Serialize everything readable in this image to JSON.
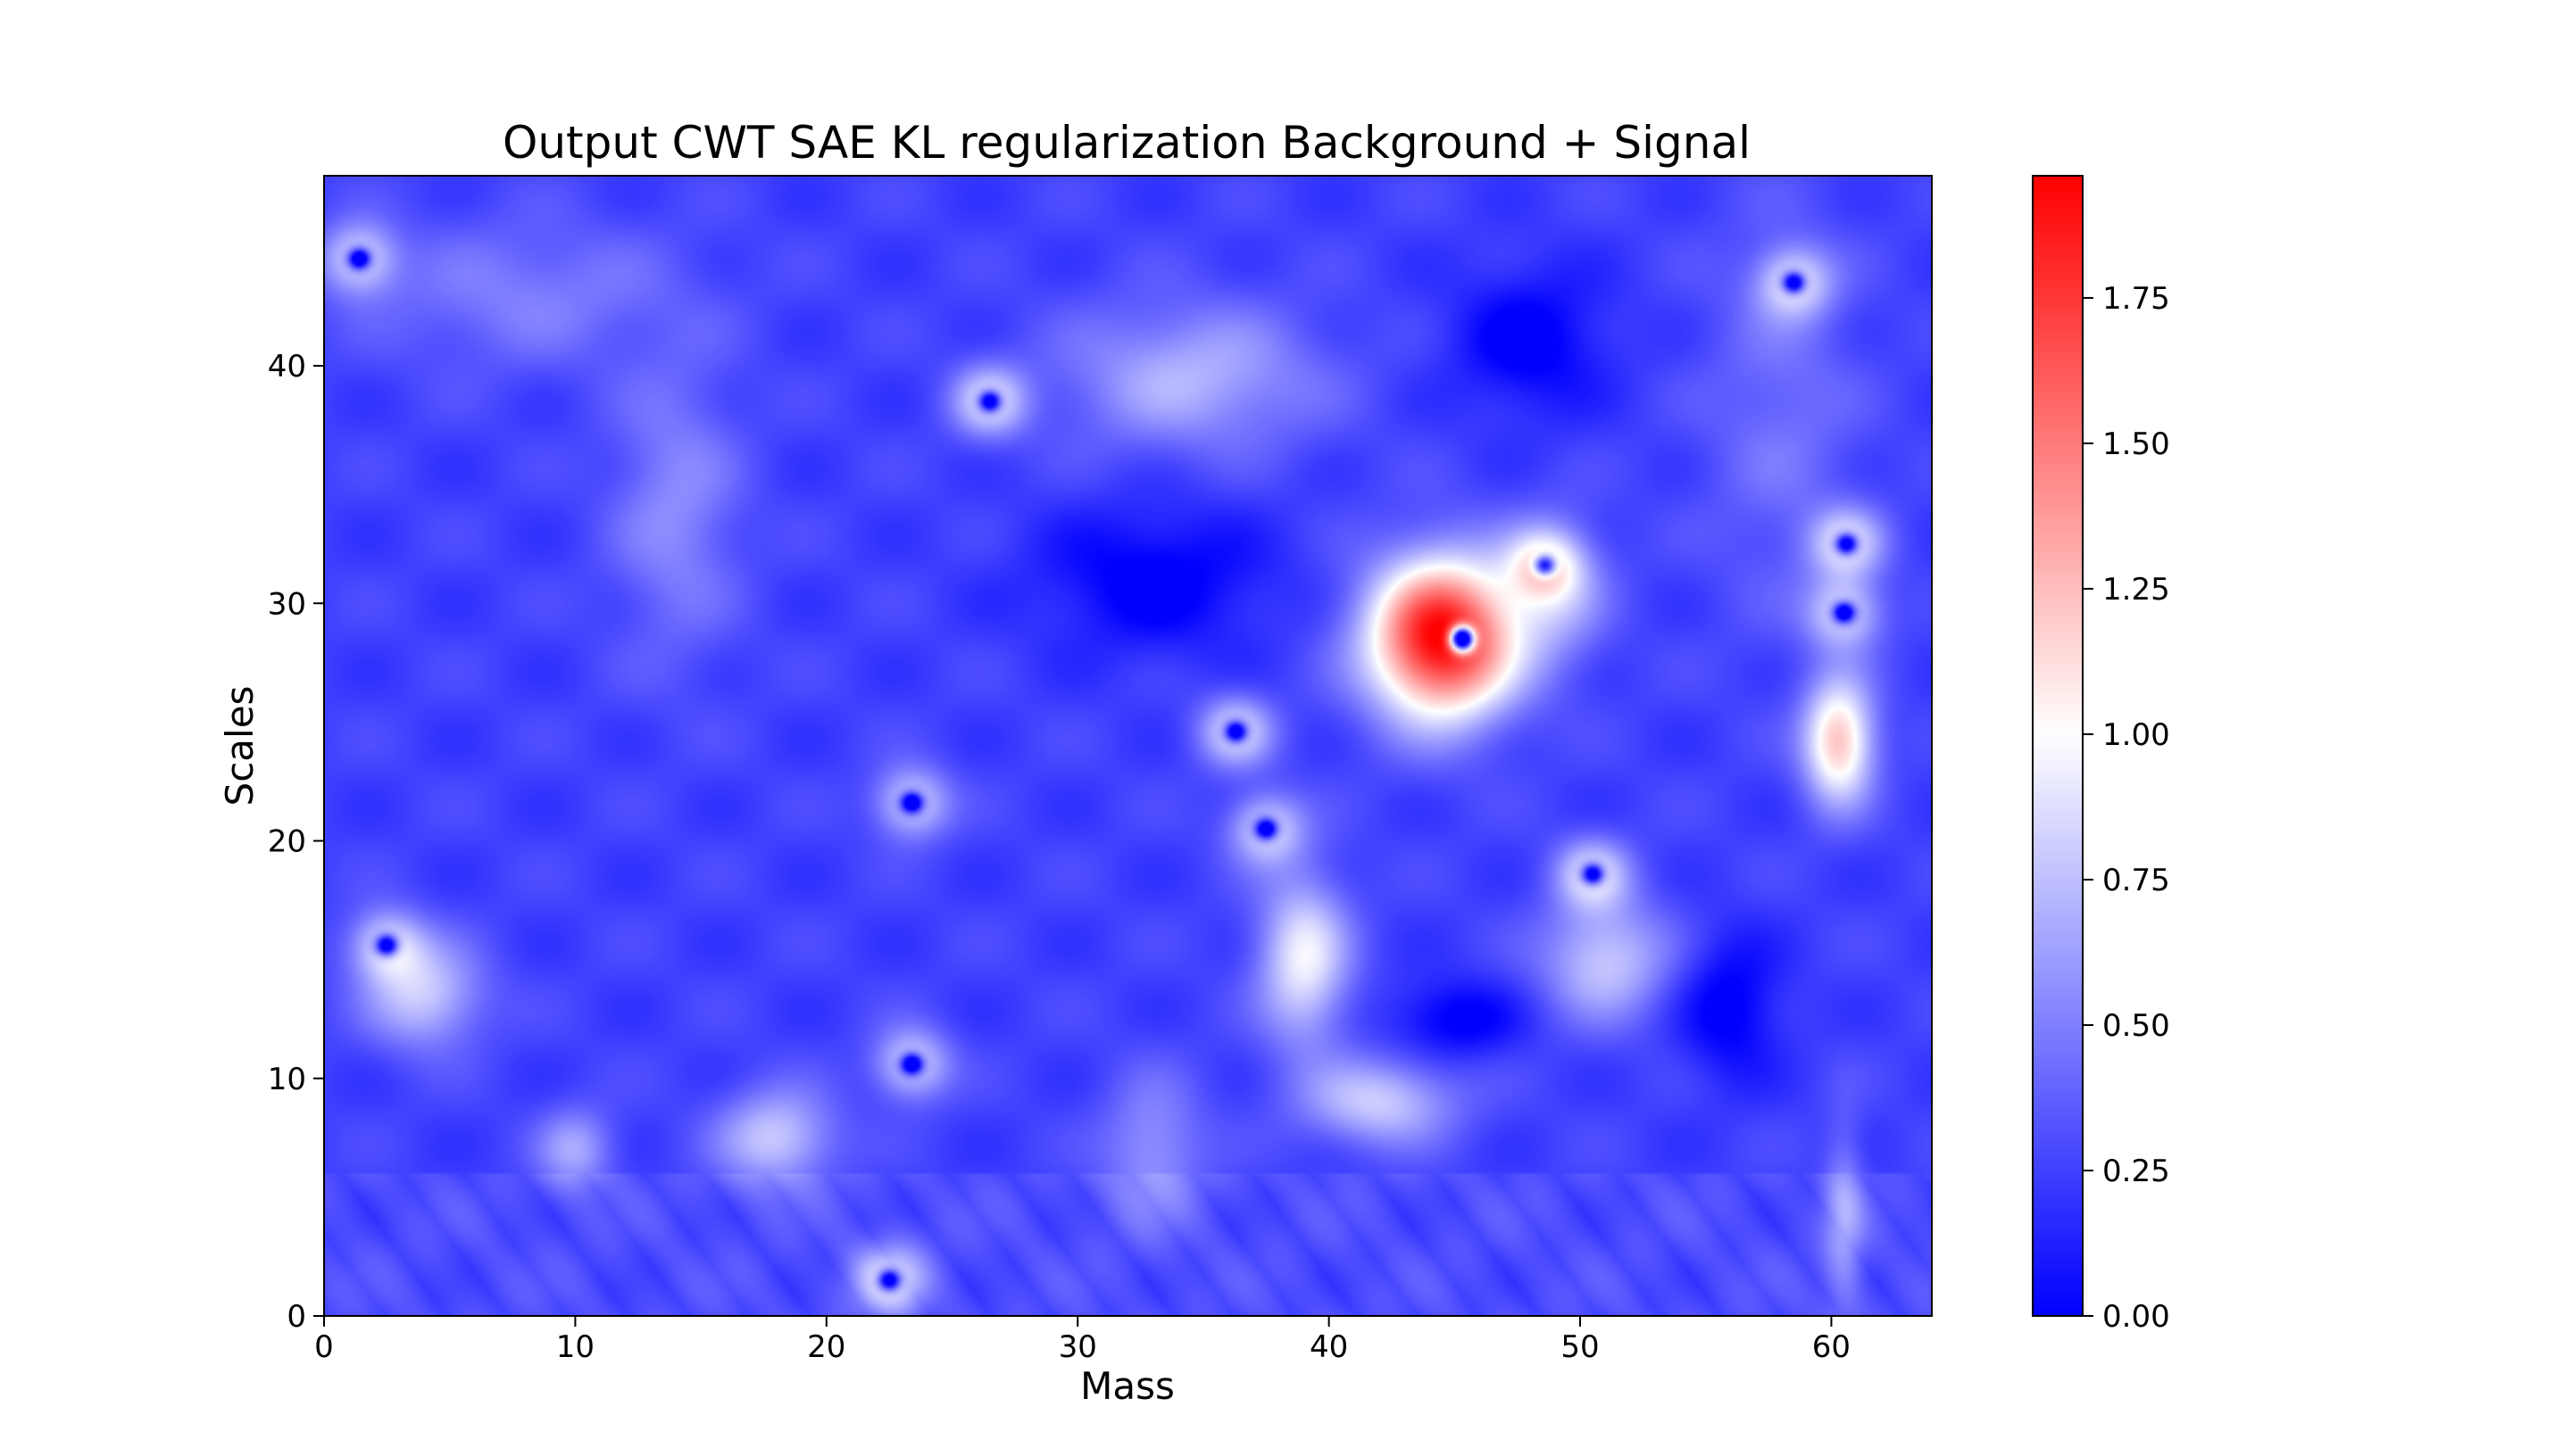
{
  "chart_data": {
    "type": "heatmap",
    "title": "Output CWT SAE KL regularization Background + Signal",
    "xlabel": "Mass",
    "ylabel": "Scales",
    "xlim": [
      0,
      64
    ],
    "ylim": [
      0,
      48
    ],
    "x_ticks": [
      0,
      10,
      20,
      30,
      40,
      50,
      60
    ],
    "y_ticks": [
      0,
      10,
      20,
      30,
      40
    ],
    "colormap": {
      "name": "bwr",
      "low": "#0000ff",
      "mid": "#ffffff",
      "high": "#ff0000"
    },
    "colorbar": {
      "vmin": 0.0,
      "vmax": 1.96,
      "ticks": [
        0.0,
        0.25,
        0.5,
        0.75,
        1.0,
        1.25,
        1.5,
        1.75
      ],
      "tick_labels": [
        "0.00",
        "0.25",
        "0.50",
        "0.75",
        "1.00",
        "1.25",
        "1.50",
        "1.75"
      ]
    },
    "grid": false,
    "background_level": 0.25,
    "features": [
      {
        "kind": "hot",
        "x": 44.5,
        "y": 28.5,
        "sx": 2.9,
        "sy": 3.3,
        "amp": 1.75
      },
      {
        "kind": "cold",
        "x": 45.3,
        "y": 28.5,
        "sx": 0.45,
        "sy": 0.5,
        "amp": -2.5
      },
      {
        "kind": "hot",
        "x": 60.3,
        "y": 24.2,
        "sx": 1.4,
        "sy": 2.6,
        "amp": 1.0
      },
      {
        "kind": "warm",
        "x": 34.5,
        "y": 39.5,
        "sx": 5.0,
        "sy": 3.0,
        "amp": 0.45
      },
      {
        "kind": "warm",
        "x": 14.0,
        "y": 34.0,
        "sx": 2.5,
        "sy": 6.0,
        "amp": 0.3
      },
      {
        "kind": "warm",
        "x": 8.0,
        "y": 43.0,
        "sx": 6.0,
        "sy": 3.0,
        "amp": 0.25
      },
      {
        "kind": "warm",
        "x": 39.0,
        "y": 15.0,
        "sx": 1.8,
        "sy": 3.5,
        "amp": 0.7
      },
      {
        "kind": "warm",
        "x": 42.0,
        "y": 9.0,
        "sx": 3.0,
        "sy": 1.8,
        "amp": 0.55
      },
      {
        "kind": "warm",
        "x": 51.0,
        "y": 15.0,
        "sx": 2.5,
        "sy": 2.5,
        "amp": 0.55
      },
      {
        "kind": "warm",
        "x": 18.0,
        "y": 7.5,
        "sx": 2.3,
        "sy": 2.0,
        "amp": 0.55
      },
      {
        "kind": "warm",
        "x": 10.0,
        "y": 7.0,
        "sx": 1.5,
        "sy": 1.7,
        "amp": 0.4
      },
      {
        "kind": "warm",
        "x": 4.0,
        "y": 13.5,
        "sx": 2.3,
        "sy": 2.2,
        "amp": 0.55
      },
      {
        "kind": "warm",
        "x": 33.0,
        "y": 7.0,
        "sx": 2.0,
        "sy": 3.0,
        "amp": 0.35
      },
      {
        "kind": "warm",
        "x": 60.5,
        "y": 4.0,
        "sx": 0.8,
        "sy": 4.0,
        "amp": 0.35
      },
      {
        "kind": "warm",
        "x": 58.0,
        "y": 38.0,
        "sx": 3.0,
        "sy": 8.0,
        "amp": 0.2
      },
      {
        "kind": "warm",
        "x": 49.0,
        "y": 30.5,
        "sx": 2.0,
        "sy": 3.0,
        "amp": 0.4
      },
      {
        "kind": "cold",
        "x": 45.0,
        "y": 12.5,
        "sx": 2.5,
        "sy": 1.6,
        "amp": -0.3
      },
      {
        "kind": "cold",
        "x": 33.0,
        "y": 31.0,
        "sx": 4.5,
        "sy": 3.0,
        "amp": -0.3
      },
      {
        "kind": "cold",
        "x": 48.0,
        "y": 41.0,
        "sx": 3.0,
        "sy": 3.0,
        "amp": -0.3
      },
      {
        "kind": "cold",
        "x": 56.0,
        "y": 13.0,
        "sx": 2.0,
        "sy": 3.0,
        "amp": -0.3
      },
      {
        "kind": "dot",
        "x": 1.4,
        "y": 44.5
      },
      {
        "kind": "dot",
        "x": 26.5,
        "y": 38.5
      },
      {
        "kind": "dot",
        "x": 58.5,
        "y": 43.5
      },
      {
        "kind": "dot",
        "x": 48.6,
        "y": 31.6
      },
      {
        "kind": "dot",
        "x": 60.6,
        "y": 32.5
      },
      {
        "kind": "dot",
        "x": 60.5,
        "y": 29.6
      },
      {
        "kind": "dot",
        "x": 36.3,
        "y": 24.6
      },
      {
        "kind": "dot",
        "x": 37.5,
        "y": 20.5
      },
      {
        "kind": "dot",
        "x": 23.4,
        "y": 21.6
      },
      {
        "kind": "dot",
        "x": 50.5,
        "y": 18.6
      },
      {
        "kind": "dot",
        "x": 2.5,
        "y": 15.6
      },
      {
        "kind": "dot",
        "x": 23.4,
        "y": 10.6
      },
      {
        "kind": "dot",
        "x": 22.5,
        "y": 1.5
      }
    ]
  }
}
